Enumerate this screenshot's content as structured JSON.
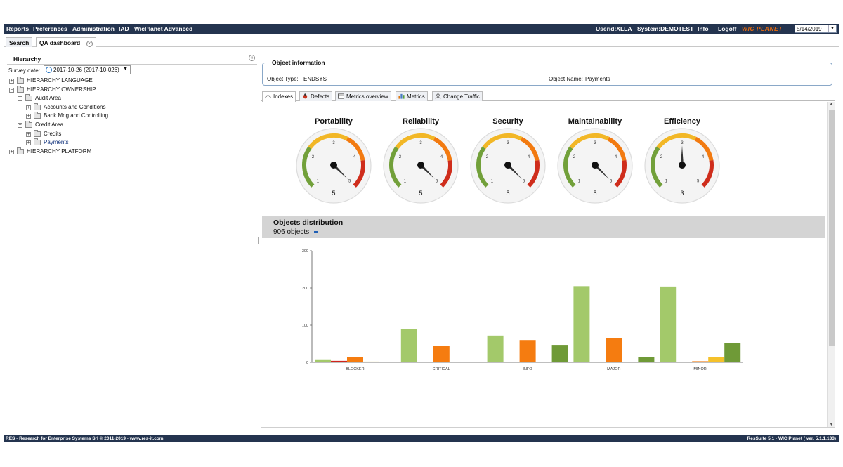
{
  "menu": {
    "items": [
      "Reports",
      "Preferences",
      "Administration",
      "IAD",
      "WicPlanet Advanced"
    ],
    "userid": "Userid:XLLA",
    "system": "System:DEMOTEST",
    "info": "Info",
    "logoff": "Logoff",
    "brand": "WIC PLANET",
    "date": "5/14/2019"
  },
  "tabs": [
    {
      "label": "Search"
    },
    {
      "label": "QA dashboard"
    }
  ],
  "hierarchy": {
    "title": "Hierarchy",
    "survey_label": "Survey date:",
    "survey_value": "2017-10-26 (2017-10-026)",
    "tree": [
      {
        "label": "HIERARCHY LANGUAGE",
        "toggle": "+"
      },
      {
        "label": "HIERARCHY OWNERSHIP",
        "toggle": "−"
      },
      {
        "label": "Audit Area",
        "toggle": "−"
      },
      {
        "label": "Accounts and Conditions",
        "toggle": "+"
      },
      {
        "label": "Bank Mng and Controlling",
        "toggle": "+"
      },
      {
        "label": "Credit Area",
        "toggle": "−"
      },
      {
        "label": "Credits",
        "toggle": "+"
      },
      {
        "label": "Payments",
        "toggle": "+"
      },
      {
        "label": "HIERARCHY PLATFORM",
        "toggle": "+"
      }
    ]
  },
  "object_info": {
    "legend": "Object information",
    "type_label": "Object Type:",
    "type_value": "ENDSYS",
    "name_label": "Object Name:",
    "name_value": "Payments"
  },
  "subtabs": [
    "Indexes",
    "Defects",
    "Metrics overview",
    "Metrics",
    "Change Traffic"
  ],
  "gauges": [
    {
      "title": "Portability",
      "value": 5
    },
    {
      "title": "Reliability",
      "value": 5
    },
    {
      "title": "Security",
      "value": 5
    },
    {
      "title": "Maintainability",
      "value": 5
    },
    {
      "title": "Efficiency",
      "value": 3
    }
  ],
  "gauge_ticks": [
    "1",
    "2",
    "3",
    "4",
    "5"
  ],
  "distribution": {
    "title": "Objects distribution",
    "count": "906 objects"
  },
  "chart_data": {
    "type": "bar",
    "categories": [
      "BLOCKER",
      "CRITICAL",
      "INFO",
      "MAJOR",
      "MINOR"
    ],
    "series": [
      {
        "color": "#a3c96a",
        "values": [
          8,
          90,
          72,
          205,
          204
        ]
      },
      {
        "color": "#d0241b",
        "values": [
          4,
          0,
          0,
          0,
          0
        ]
      },
      {
        "color": "#f57c10",
        "values": [
          15,
          45,
          60,
          65,
          3
        ]
      },
      {
        "color": "#f5c12a",
        "values": [
          2,
          0,
          0,
          0,
          15
        ]
      },
      {
        "color": "#6f9a37",
        "values": [
          0,
          0,
          47,
          15,
          51
        ]
      }
    ],
    "yticks": [
      0,
      100,
      200,
      300
    ],
    "ylim": [
      0,
      300
    ],
    "grid": false,
    "legend": "none"
  },
  "footer": {
    "left": "RES - Research for Enterprise Systems Srl © 2011-2019 - www.res-it.com",
    "right": "ResSuite 5.1 - WIC Planet ( ver. 5.1.1.133)"
  }
}
